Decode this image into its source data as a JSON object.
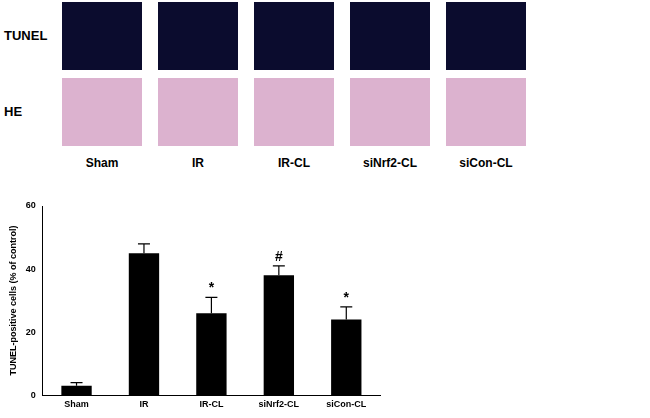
{
  "panels": {
    "rows": [
      "TUNEL",
      "HE"
    ],
    "columns": [
      "Sham",
      "IR",
      "IR-CL",
      "siNrf2-CL",
      "siCon-CL"
    ]
  },
  "chart_data": {
    "type": "bar",
    "categories": [
      "Sham",
      "IR",
      "IR-CL",
      "siNrf2-CL",
      "siCon-CL"
    ],
    "values": [
      3,
      45,
      26,
      38,
      24
    ],
    "errors": [
      1,
      3,
      5,
      3,
      4
    ],
    "annotations": [
      null,
      null,
      "*",
      "#",
      "*"
    ],
    "color": "#000000",
    "y_label": "TUNEL-positive cells (% of control)",
    "ylim": [
      0,
      60
    ],
    "yticks": [
      0,
      20,
      40,
      60
    ],
    "grid": false
  }
}
